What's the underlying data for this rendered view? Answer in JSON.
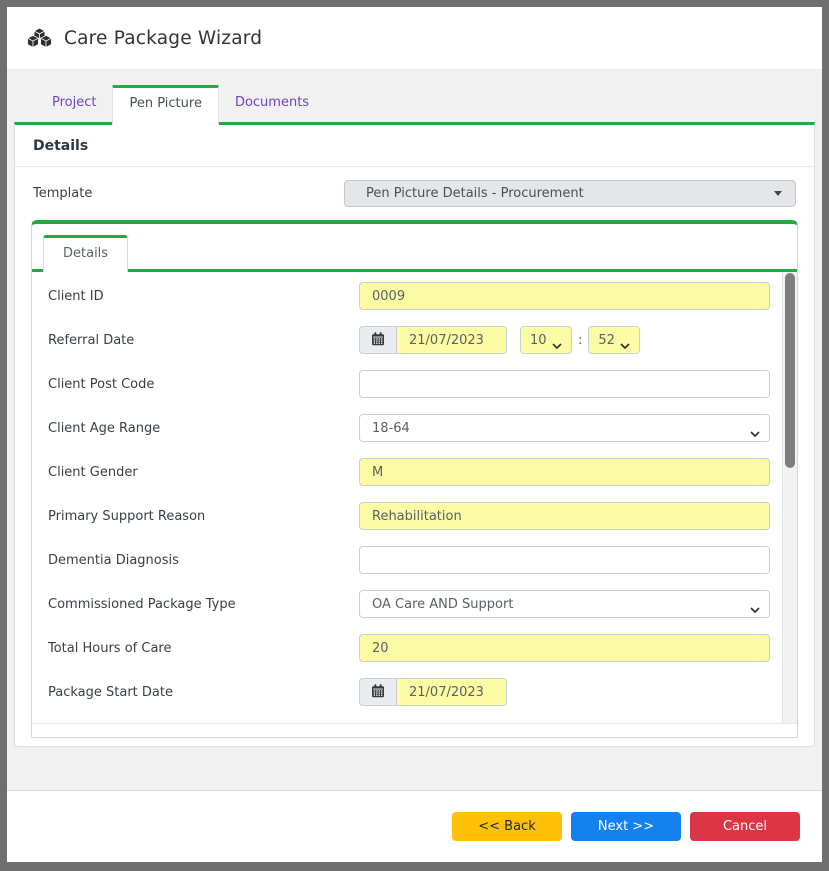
{
  "header": {
    "title": "Care Package Wizard",
    "icon": "cubes-icon"
  },
  "tabs": [
    {
      "label": "Project",
      "active": false
    },
    {
      "label": "Pen Picture",
      "active": true
    },
    {
      "label": "Documents",
      "active": false
    }
  ],
  "section": {
    "title": "Details"
  },
  "template": {
    "label": "Template",
    "value": "Pen Picture Details - Procurement"
  },
  "inner_tabs": [
    {
      "label": "Details",
      "active": true
    }
  ],
  "form": {
    "fields": [
      {
        "label": "Client ID",
        "type": "text",
        "value": "0009",
        "highlight": true
      },
      {
        "label": "Referral Date",
        "type": "datetime",
        "date": "21/07/2023",
        "hour": "10",
        "minute": "52",
        "time_separator": ":",
        "highlight": true
      },
      {
        "label": "Client Post Code",
        "type": "text",
        "value": "",
        "highlight": false
      },
      {
        "label": "Client Age Range",
        "type": "select",
        "value": "18-64",
        "highlight": false
      },
      {
        "label": "Client Gender",
        "type": "text",
        "value": "M",
        "highlight": true
      },
      {
        "label": "Primary Support Reason",
        "type": "text",
        "value": "Rehabilitation",
        "highlight": true
      },
      {
        "label": "Dementia Diagnosis",
        "type": "text",
        "value": "",
        "highlight": false
      },
      {
        "label": "Commissioned Package Type",
        "type": "select",
        "value": "OA Care AND Support",
        "highlight": false
      },
      {
        "label": "Total Hours of Care",
        "type": "text",
        "value": "20",
        "highlight": true
      },
      {
        "label": "Package Start Date",
        "type": "date",
        "date": "21/07/2023",
        "highlight": true
      }
    ]
  },
  "footer": {
    "back_label": "<< Back",
    "next_label": "Next >>",
    "cancel_label": "Cancel"
  },
  "colors": {
    "accent_green": "#28a745",
    "tab_link_purple": "#6f42c1",
    "highlight_yellow": "#fcfca5",
    "back_button": "#ffc107",
    "next_button": "#1580f0",
    "cancel_button": "#dc3545",
    "frame_border": "#6f6f6f"
  }
}
